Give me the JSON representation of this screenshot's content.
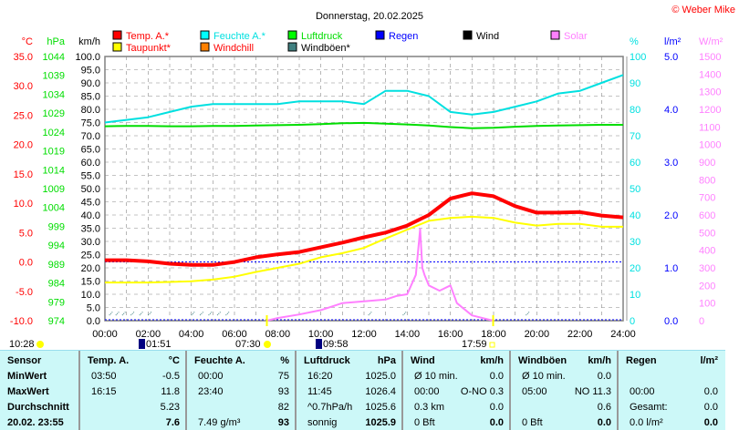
{
  "title": "Donnerstag, 20.02.2025",
  "copyright": "© Weber Mike",
  "legend": [
    {
      "label": "Temp. A.*",
      "color": "#ff0000",
      "text_color": "#ff0000"
    },
    {
      "label": "Feuchte A.*",
      "color": "#00ffff",
      "text_color": "#00e0e0"
    },
    {
      "label": "Luftdruck",
      "color": "#00ff00",
      "text_color": "#00dd00"
    },
    {
      "label": "Regen",
      "color": "#0000ff",
      "text_color": "#0000ff"
    },
    {
      "label": "Wind",
      "color": "#000000",
      "text_color": "#000000"
    },
    {
      "label": "Solar",
      "color": "#ff80ff",
      "text_color": "#ff80ff"
    },
    {
      "label": "Taupunkt*",
      "color": "#ffff00",
      "text_color": "#ff0000"
    },
    {
      "label": "Windchill",
      "color": "#ff8000",
      "text_color": "#ff0000"
    },
    {
      "label": "Windböen*",
      "color": "#408080",
      "text_color": "#000000"
    }
  ],
  "chart_data": {
    "type": "line",
    "title": "Donnerstag, 20.02.2025",
    "x_ticks": [
      "00:00",
      "02:00",
      "04:00",
      "06:00",
      "08:00",
      "10:00",
      "12:00",
      "14:00",
      "16:00",
      "18:00",
      "20:00",
      "22:00",
      "24:00"
    ],
    "axes": {
      "temp": {
        "unit": "°C",
        "range": [
          -10,
          35
        ],
        "step": 5,
        "color": "#ff0000"
      },
      "pressure": {
        "unit": "hPa",
        "range": [
          974,
          1044
        ],
        "step": 5,
        "color": "#00dd00"
      },
      "wind": {
        "unit": "km/h",
        "range": [
          0,
          100
        ],
        "step": 5,
        "color": "#000000"
      },
      "humidity": {
        "unit": "%",
        "range": [
          0,
          100
        ],
        "step": 10,
        "color": "#00e0e0"
      },
      "rain": {
        "unit": "l/m²",
        "range": [
          0,
          5
        ],
        "step": 1,
        "color": "#0000ff"
      },
      "solar": {
        "unit": "W/m²",
        "range": [
          0,
          1500
        ],
        "step": 100,
        "color": "#ff80ff"
      }
    },
    "hours": [
      0,
      1,
      2,
      3,
      4,
      5,
      6,
      7,
      8,
      9,
      10,
      11,
      12,
      13,
      14,
      15,
      16,
      17,
      18,
      19,
      20,
      21,
      22,
      23,
      24
    ],
    "series": [
      {
        "name": "Temp. A.",
        "axis": "temp",
        "values": [
          0.3,
          0.3,
          0.1,
          -0.3,
          -0.5,
          -0.5,
          0,
          0.8,
          1.3,
          1.7,
          2.5,
          3.3,
          4.2,
          5,
          6.2,
          8,
          10.8,
          11.7,
          11.2,
          9.5,
          8.4,
          8.4,
          8.5,
          7.9,
          7.6
        ]
      },
      {
        "name": "Taupunkt",
        "axis": "temp",
        "values": [
          -3.5,
          -3.5,
          -3.5,
          -3.4,
          -3.3,
          -3,
          -2.5,
          -1.7,
          -1,
          -0.3,
          0.8,
          1.5,
          2.4,
          4,
          5.5,
          7,
          7.5,
          7.7,
          7.5,
          6.7,
          6.2,
          6.5,
          6.5,
          6,
          6
        ]
      },
      {
        "name": "Feuchte A.",
        "axis": "humidity",
        "values": [
          75,
          76,
          77,
          79,
          81,
          82,
          82,
          82,
          82,
          83,
          83,
          83,
          82,
          87,
          87,
          85,
          79,
          78,
          79,
          81,
          83,
          86,
          87,
          90,
          93
        ]
      },
      {
        "name": "Luftdruck",
        "axis": "pressure",
        "values": [
          1025.5,
          1025.6,
          1025.6,
          1025.5,
          1025.5,
          1025.6,
          1025.6,
          1025.7,
          1025.8,
          1025.9,
          1026.1,
          1026.3,
          1026.4,
          1026.2,
          1026,
          1025.7,
          1025.3,
          1025,
          1025.1,
          1025.4,
          1025.6,
          1025.7,
          1025.8,
          1025.9,
          1025.9
        ]
      },
      {
        "name": "Solar",
        "axis": "solar",
        "x": [
          7.5,
          8,
          9,
          10,
          11,
          12,
          13,
          13.5,
          14,
          14.4,
          14.6,
          14.7,
          14.8,
          15,
          15.5,
          16,
          16.3,
          17,
          17.98
        ],
        "values": [
          0,
          15,
          35,
          60,
          100,
          110,
          120,
          140,
          150,
          260,
          520,
          300,
          260,
          200,
          170,
          200,
          100,
          30,
          0
        ]
      }
    ],
    "zero_line": {
      "axis": "temp",
      "value": 0
    }
  },
  "markers": {
    "moonrise": "01:51",
    "sunrise": "07:30",
    "moonset": "09:58",
    "sunset": "17:59",
    "daylength": "10:28"
  },
  "table": {
    "headers": [
      [
        "Sensor",
        ""
      ],
      [
        "Temp. A.",
        "°C"
      ],
      [
        "Feuchte A.",
        "%"
      ],
      [
        "Luftdruck",
        "hPa"
      ],
      [
        "Wind",
        "km/h"
      ],
      [
        "Windböen",
        "km/h"
      ],
      [
        "Regen",
        "l/m²"
      ]
    ],
    "row_labels": [
      "MinWert",
      "MaxWert",
      "Durchschnitt",
      "20.02. 23:55"
    ],
    "cols": [
      [
        [
          "03:50",
          "-0.5"
        ],
        [
          "16:15",
          "11.8"
        ],
        [
          "",
          "5.23"
        ],
        [
          "",
          "7.6"
        ]
      ],
      [
        [
          "00:00",
          "75"
        ],
        [
          "23:40",
          "93"
        ],
        [
          "",
          "82"
        ],
        [
          "7.49 g/m³",
          "93"
        ]
      ],
      [
        [
          "16:20",
          "1025.0"
        ],
        [
          "11:45",
          "1026.4"
        ],
        [
          "^0.7hPa/h",
          "1025.6"
        ],
        [
          "sonnig",
          "1025.9"
        ]
      ],
      [
        [
          "Ø 10 min.",
          "0.0"
        ],
        [
          "00:00",
          "O-NO 0.3"
        ],
        [
          "0.3 km",
          "0.0"
        ],
        [
          "0 Bft",
          "0.0"
        ]
      ],
      [
        [
          "Ø 10 min.",
          "0.0"
        ],
        [
          "05:00",
          "NO 11.3"
        ],
        [
          "",
          "0.6"
        ],
        [
          "0 Bft",
          "0.0"
        ]
      ],
      [
        [
          "",
          ""
        ],
        [
          "00:00",
          "0.0"
        ],
        [
          "Gesamt:",
          "0.0"
        ],
        [
          "0.0 l/m²",
          "0.0"
        ]
      ]
    ]
  }
}
